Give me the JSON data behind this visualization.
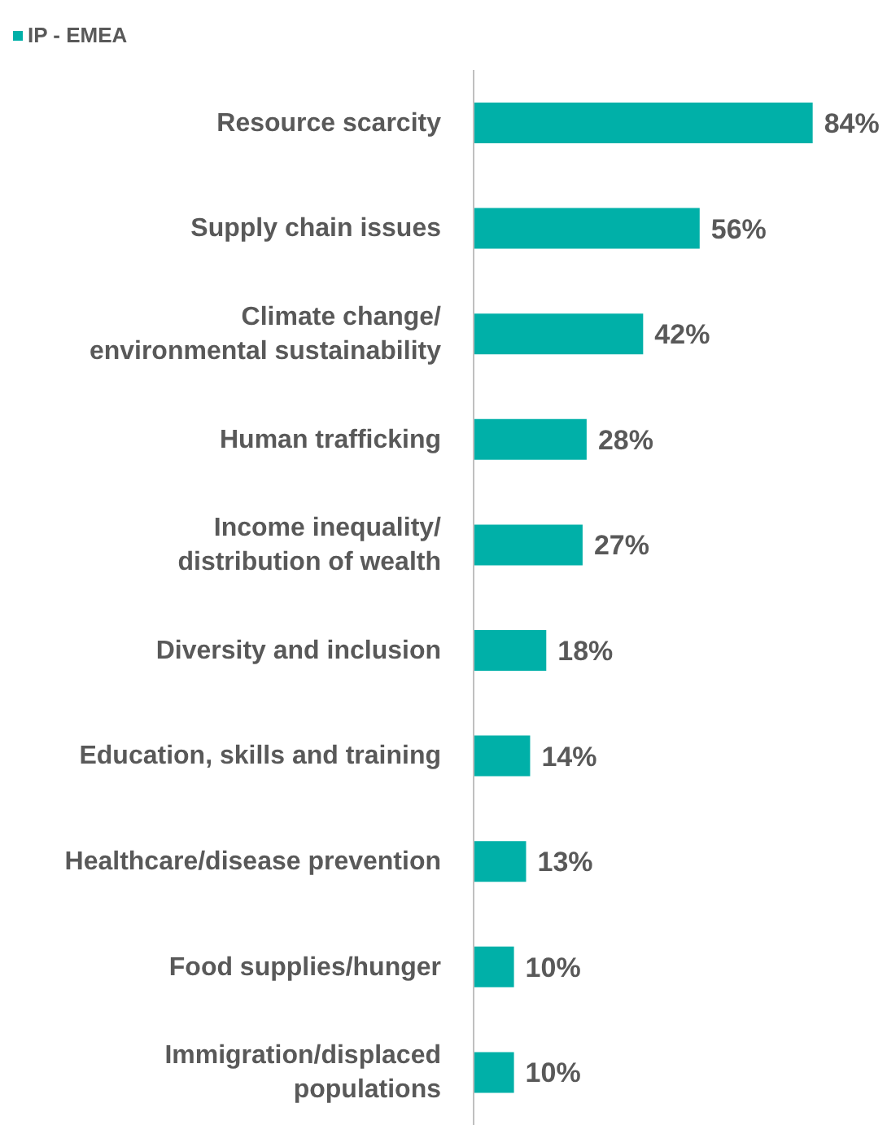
{
  "chart_data": {
    "type": "bar",
    "orientation": "horizontal",
    "categories": [
      "Resource scarcity",
      "Supply chain issues",
      "Climate change/ environmental sustainability",
      "Human trafficking",
      "Income inequality/ distribution of wealth",
      "Diversity and inclusion",
      "Education, skills and training",
      "Healthcare/disease prevention",
      "Food supplies/hunger",
      "Immigration/displaced populations"
    ],
    "series": [
      {
        "name": "IP - EMEA",
        "color": "#00b0a8",
        "values": [
          84,
          56,
          42,
          28,
          27,
          18,
          14,
          13,
          10,
          10
        ],
        "value_labels": [
          "84%",
          "56%",
          "42%",
          "28%",
          "27%",
          "18%",
          "14%",
          "13%",
          "10%",
          "10%"
        ]
      }
    ],
    "legend": "top left"
  }
}
